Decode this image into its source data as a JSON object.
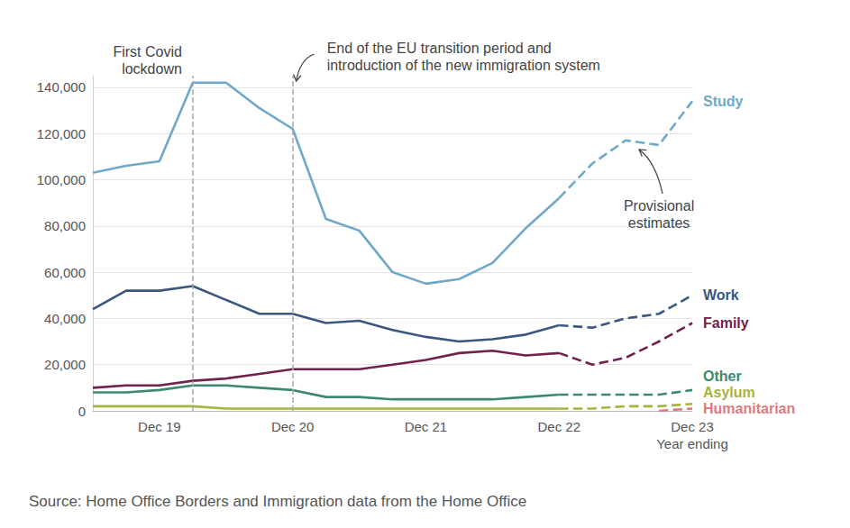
{
  "chart_data": {
    "type": "line",
    "source": "Source: Home Office Borders and Immigration data from the Home Office",
    "xlabel": "Year ending",
    "categories": [
      null,
      null,
      "Dec 19",
      null,
      null,
      null,
      "Dec 20",
      null,
      null,
      null,
      "Dec 21",
      null,
      null,
      null,
      "Dec 22",
      null,
      null,
      null,
      "Dec 23"
    ],
    "ylim": [
      0,
      145000
    ],
    "yticks": [
      0,
      {
        "value": 20000,
        "label": "20,000"
      },
      {
        "value": 40000,
        "label": "40,000"
      },
      {
        "value": 60000,
        "label": "60,000"
      },
      {
        "value": 80000,
        "label": "80,000"
      },
      {
        "value": 100000,
        "label": "100,000"
      },
      {
        "value": 120000,
        "label": "120,000"
      },
      {
        "value": 140000,
        "label": "140,000"
      }
    ],
    "grid": true,
    "series": [
      {
        "name": "Study",
        "color": "#6fa9c9",
        "line_style": "solid",
        "values": [
          103000,
          106000,
          108000,
          142000,
          142000,
          131000,
          122000,
          83000,
          78000,
          60000,
          55000,
          57000,
          64000,
          79000,
          92000,
          null,
          null,
          null,
          null
        ]
      },
      {
        "name": "Study",
        "color": "#6fa9c9",
        "line_style": "dashed",
        "values": [
          null,
          null,
          null,
          null,
          null,
          null,
          null,
          null,
          null,
          null,
          null,
          null,
          null,
          null,
          92000,
          107000,
          117000,
          115000,
          134000
        ]
      },
      {
        "name": "Work",
        "color": "#3b5780",
        "line_style": "solid",
        "values": [
          44000,
          52000,
          52000,
          54000,
          48000,
          42000,
          42000,
          38000,
          39000,
          35000,
          32000,
          30000,
          31000,
          33000,
          37000,
          null,
          null,
          null,
          null
        ]
      },
      {
        "name": "Work",
        "color": "#3b5780",
        "line_style": "dashed",
        "values": [
          null,
          null,
          null,
          null,
          null,
          null,
          null,
          null,
          null,
          null,
          null,
          null,
          null,
          null,
          37000,
          36000,
          40000,
          42000,
          50000
        ]
      },
      {
        "name": "Family",
        "color": "#71204f",
        "line_style": "solid",
        "values": [
          10000,
          11000,
          11000,
          13000,
          14000,
          16000,
          18000,
          18000,
          18000,
          20000,
          22000,
          25000,
          26000,
          24000,
          25000,
          null,
          null,
          null,
          null
        ]
      },
      {
        "name": "Family",
        "color": "#71204f",
        "line_style": "dashed",
        "values": [
          null,
          null,
          null,
          null,
          null,
          null,
          null,
          null,
          null,
          null,
          null,
          null,
          null,
          null,
          25000,
          20000,
          23000,
          30000,
          38000
        ]
      },
      {
        "name": "Other",
        "color": "#3b8a6e",
        "line_style": "solid",
        "values": [
          8000,
          8000,
          9000,
          11000,
          11000,
          10000,
          9000,
          6000,
          6000,
          5000,
          5000,
          5000,
          5000,
          6000,
          7000,
          null,
          null,
          null,
          null
        ]
      },
      {
        "name": "Other",
        "color": "#3b8a6e",
        "line_style": "dashed",
        "values": [
          null,
          null,
          null,
          null,
          null,
          null,
          null,
          null,
          null,
          null,
          null,
          null,
          null,
          null,
          7000,
          7000,
          7000,
          7000,
          9000
        ]
      },
      {
        "name": "Asylum",
        "color": "#a6b43c",
        "line_style": "solid",
        "values": [
          2000,
          2000,
          2000,
          2000,
          1000,
          1000,
          1000,
          1000,
          1000,
          1000,
          1000,
          1000,
          1000,
          1000,
          1000,
          null,
          null,
          null,
          null
        ]
      },
      {
        "name": "Asylum",
        "color": "#a6b43c",
        "line_style": "dashed",
        "values": [
          null,
          null,
          null,
          null,
          null,
          null,
          null,
          null,
          null,
          null,
          null,
          null,
          null,
          null,
          1000,
          1000,
          2000,
          2000,
          3000
        ]
      },
      {
        "name": "Humanitarian",
        "color": "#e07a80",
        "line_style": "dashed",
        "values": [
          null,
          null,
          null,
          null,
          null,
          null,
          null,
          null,
          null,
          null,
          null,
          null,
          null,
          null,
          null,
          null,
          null,
          0,
          1000
        ]
      }
    ],
    "annotations": [
      {
        "text": "First Covid\nlockdown",
        "at_index": 3
      },
      {
        "text": "End of the EU transition period and\nintroduction of the new immigration system",
        "at_index": 6
      },
      {
        "text": "Provisional\nestimates",
        "series": "Study",
        "at_index": 17
      }
    ]
  }
}
